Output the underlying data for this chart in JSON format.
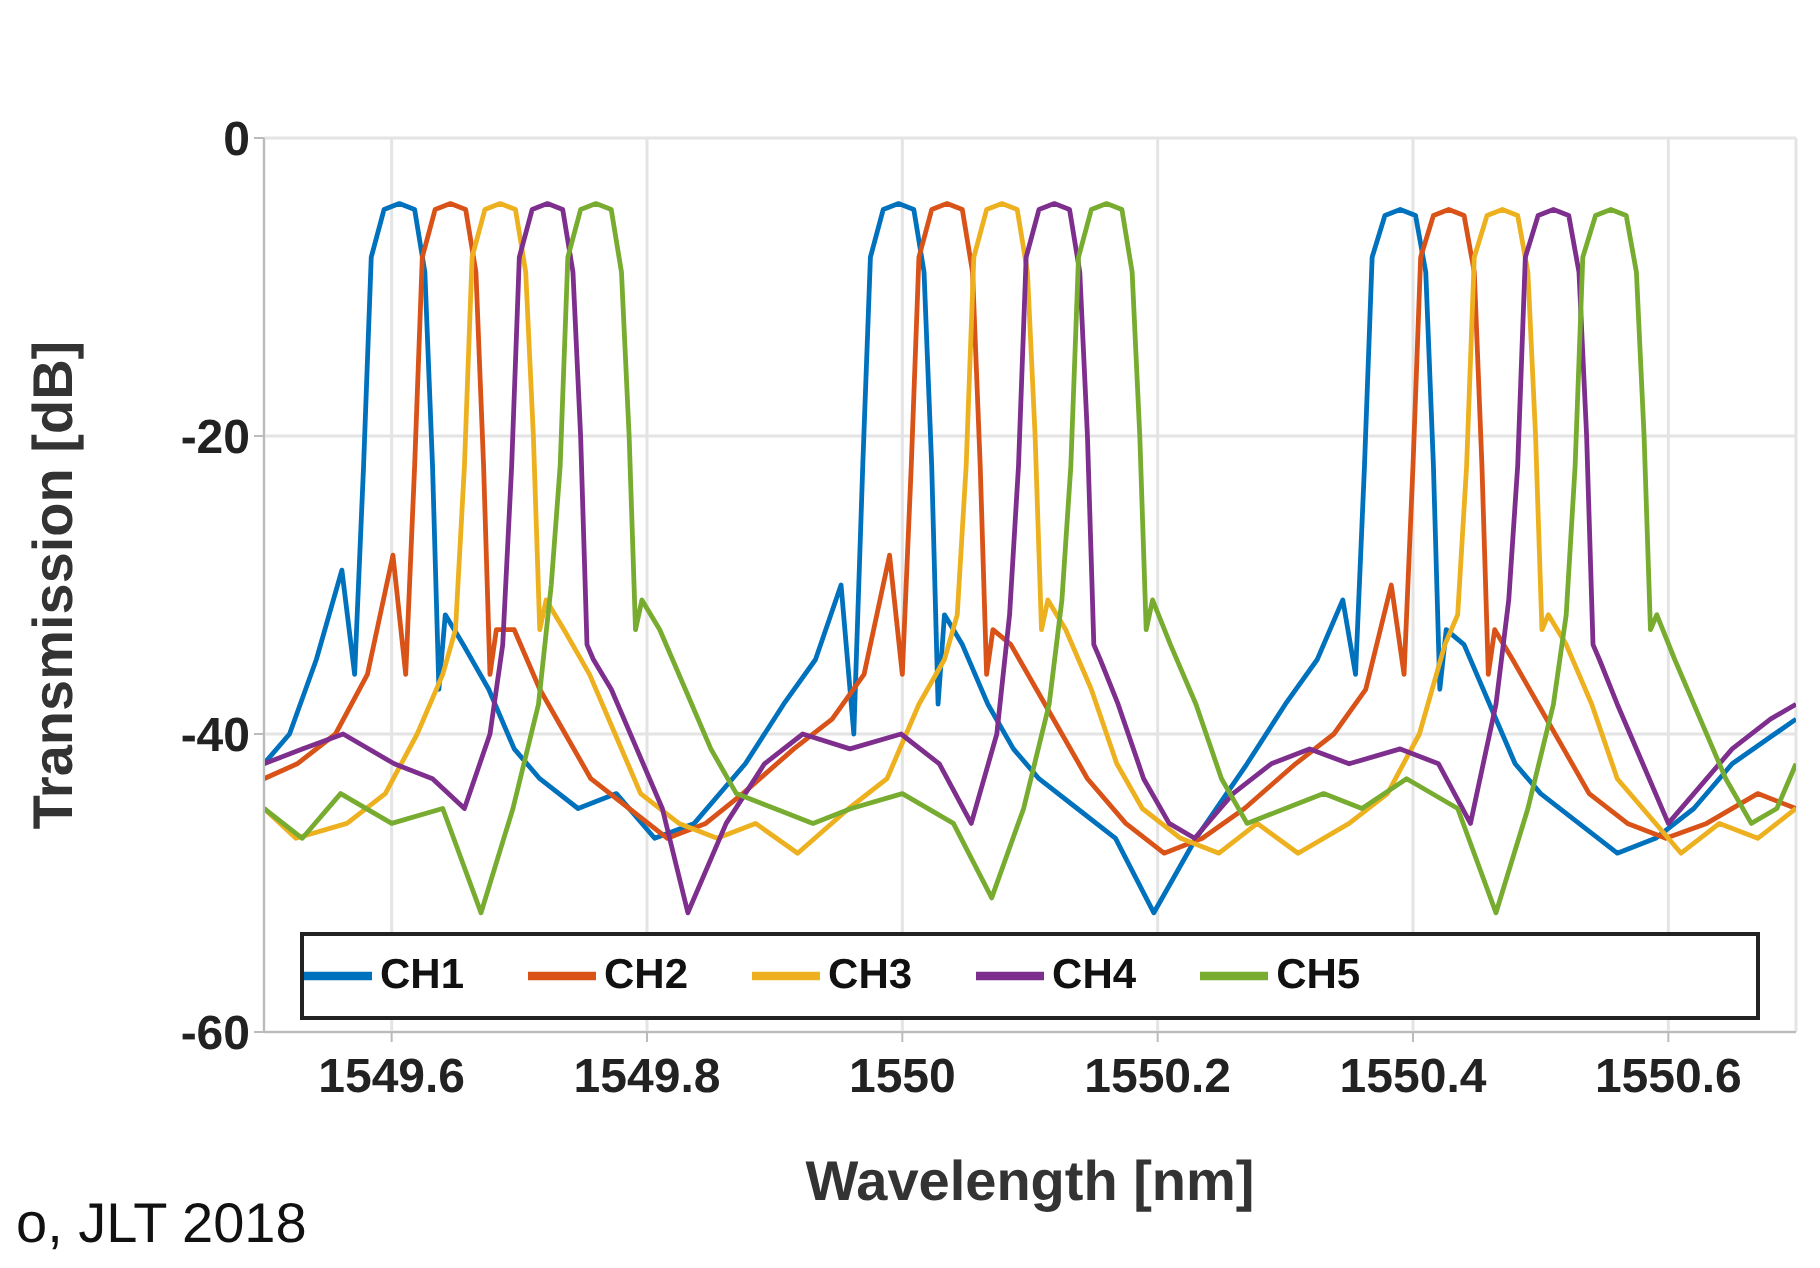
{
  "chart_data": {
    "type": "line",
    "xlabel": "Wavelength [nm]",
    "ylabel": "Transmission [dB]",
    "xlim": [
      1549.5,
      1550.7
    ],
    "xticks": [
      1549.6,
      1549.8,
      1550,
      1550.2,
      1550.4,
      1550.6
    ],
    "ylim": [
      -60,
      0
    ],
    "yticks": [
      -60,
      -40,
      -20,
      0
    ],
    "grid": true,
    "legend": "bottom",
    "marker": "none",
    "line_style": "solid",
    "annotations": [
      "o, JLT 2018"
    ],
    "series": [
      {
        "name": "CH1",
        "color": "#0072bd",
        "x": [
          1549.5,
          1549.52,
          1549.541,
          1549.561,
          1549.571,
          1549.578,
          1549.584,
          1549.594,
          1549.606,
          1549.618,
          1549.626,
          1549.632,
          1549.637,
          1549.642,
          1549.656,
          1549.676,
          1549.696,
          1549.716,
          1549.746,
          1549.776,
          1549.806,
          1549.837,
          1549.877,
          1549.907,
          1549.932,
          1549.952,
          1549.962,
          1549.969,
          1549.975,
          1549.985,
          1549.997,
          1550.009,
          1550.017,
          1550.023,
          1550.028,
          1550.033,
          1550.047,
          1550.067,
          1550.087,
          1550.107,
          1550.137,
          1550.167,
          1550.197,
          1550.23,
          1550.27,
          1550.3,
          1550.325,
          1550.345,
          1550.355,
          1550.362,
          1550.368,
          1550.378,
          1550.39,
          1550.402,
          1550.41,
          1550.416,
          1550.421,
          1550.426,
          1550.44,
          1550.46,
          1550.48,
          1550.5,
          1550.53,
          1550.56,
          1550.59,
          1550.62,
          1550.65,
          1550.7
        ],
        "values": [
          -42,
          -40,
          -35,
          -29,
          -36,
          -22,
          -8,
          -4.8,
          -4.4,
          -4.8,
          -9,
          -22,
          -37,
          -32,
          -34,
          -37,
          -41,
          -43,
          -45,
          -44,
          -47,
          -46,
          -42,
          -38,
          -35,
          -30,
          -40,
          -22,
          -8,
          -4.8,
          -4.4,
          -4.8,
          -9,
          -22,
          -38,
          -32,
          -34,
          -38,
          -41,
          -43,
          -45,
          -47,
          -52,
          -47,
          -42,
          -38,
          -35,
          -31,
          -36,
          -22,
          -8,
          -5.2,
          -4.8,
          -5.2,
          -9,
          -22,
          -37,
          -33,
          -34,
          -38,
          -42,
          -44,
          -46,
          -48,
          -47,
          -45,
          -42,
          -39
        ]
      },
      {
        "name": "CH2",
        "color": "#d95319",
        "x": [
          1549.5,
          1549.526,
          1549.556,
          1549.581,
          1549.601,
          1549.611,
          1549.618,
          1549.624,
          1549.634,
          1549.646,
          1549.658,
          1549.666,
          1549.672,
          1549.677,
          1549.682,
          1549.696,
          1549.716,
          1549.736,
          1549.756,
          1549.786,
          1549.816,
          1549.846,
          1549.875,
          1549.915,
          1549.945,
          1549.97,
          1549.99,
          1550.0,
          1550.007,
          1550.013,
          1550.023,
          1550.035,
          1550.047,
          1550.055,
          1550.061,
          1550.066,
          1550.071,
          1550.085,
          1550.105,
          1550.125,
          1550.145,
          1550.175,
          1550.205,
          1550.235,
          1550.268,
          1550.308,
          1550.338,
          1550.363,
          1550.383,
          1550.393,
          1550.4,
          1550.406,
          1550.416,
          1550.428,
          1550.44,
          1550.448,
          1550.454,
          1550.459,
          1550.464,
          1550.478,
          1550.498,
          1550.518,
          1550.538,
          1550.568,
          1550.598,
          1550.63,
          1550.67,
          1550.7
        ],
        "values": [
          -43,
          -42,
          -40,
          -36,
          -28,
          -36,
          -22,
          -8,
          -4.8,
          -4.4,
          -4.8,
          -9,
          -22,
          -36,
          -33,
          -33,
          -37,
          -40,
          -43,
          -45,
          -47,
          -46,
          -44,
          -41,
          -39,
          -36,
          -28,
          -36,
          -22,
          -8,
          -4.8,
          -4.4,
          -4.8,
          -9,
          -22,
          -36,
          -33,
          -34,
          -37,
          -40,
          -43,
          -46,
          -48,
          -47,
          -45,
          -42,
          -40,
          -37,
          -30,
          -36,
          -22,
          -8,
          -5.2,
          -4.8,
          -5.2,
          -9,
          -22,
          -36,
          -33,
          -35,
          -38,
          -41,
          -44,
          -46,
          -47,
          -46,
          -44,
          -45
        ]
      },
      {
        "name": "CH3",
        "color": "#edb120",
        "x": [
          1549.5,
          1549.525,
          1549.565,
          1549.595,
          1549.62,
          1549.64,
          1549.65,
          1549.657,
          1549.663,
          1549.673,
          1549.685,
          1549.697,
          1549.705,
          1549.711,
          1549.716,
          1549.721,
          1549.735,
          1549.755,
          1549.775,
          1549.795,
          1549.825,
          1549.855,
          1549.885,
          1549.918,
          1549.958,
          1549.988,
          1550.013,
          1550.033,
          1550.043,
          1550.05,
          1550.056,
          1550.066,
          1550.078,
          1550.09,
          1550.098,
          1550.104,
          1550.109,
          1550.114,
          1550.128,
          1550.148,
          1550.168,
          1550.188,
          1550.218,
          1550.248,
          1550.278,
          1550.31,
          1550.35,
          1550.38,
          1550.405,
          1550.425,
          1550.435,
          1550.442,
          1550.448,
          1550.458,
          1550.47,
          1550.482,
          1550.49,
          1550.496,
          1550.501,
          1550.506,
          1550.52,
          1550.54,
          1550.56,
          1550.58,
          1550.61,
          1550.64,
          1550.67,
          1550.7
        ],
        "values": [
          -45,
          -47,
          -46,
          -44,
          -40,
          -36,
          -33,
          -22,
          -8,
          -4.8,
          -4.4,
          -4.8,
          -9,
          -20,
          -33,
          -31,
          -33,
          -36,
          -40,
          -44,
          -46,
          -47,
          -46,
          -48,
          -45,
          -43,
          -38,
          -35,
          -32,
          -22,
          -8,
          -4.8,
          -4.4,
          -4.8,
          -9,
          -20,
          -33,
          -31,
          -33,
          -37,
          -42,
          -45,
          -47,
          -48,
          -46,
          -48,
          -46,
          -44,
          -40,
          -34,
          -32,
          -22,
          -8,
          -5.2,
          -4.8,
          -5.2,
          -9,
          -20,
          -33,
          -32,
          -34,
          -38,
          -43,
          -45,
          -48,
          -46,
          -47,
          -45
        ]
      },
      {
        "name": "CH4",
        "color": "#7e2f8e",
        "x": [
          1549.5,
          1549.53,
          1549.562,
          1549.602,
          1549.632,
          1549.657,
          1549.677,
          1549.687,
          1549.694,
          1549.7,
          1549.71,
          1549.722,
          1549.734,
          1549.742,
          1549.748,
          1549.753,
          1549.758,
          1549.772,
          1549.792,
          1549.812,
          1549.832,
          1549.862,
          1549.892,
          1549.922,
          1549.959,
          1549.999,
          1550.029,
          1550.054,
          1550.074,
          1550.084,
          1550.091,
          1550.097,
          1550.107,
          1550.119,
          1550.131,
          1550.139,
          1550.145,
          1550.15,
          1550.155,
          1550.169,
          1550.189,
          1550.209,
          1550.229,
          1550.259,
          1550.289,
          1550.319,
          1550.35,
          1550.39,
          1550.42,
          1550.445,
          1550.465,
          1550.475,
          1550.482,
          1550.488,
          1550.498,
          1550.51,
          1550.522,
          1550.53,
          1550.536,
          1550.541,
          1550.546,
          1550.56,
          1550.58,
          1550.6,
          1550.62,
          1550.65,
          1550.68,
          1550.7
        ],
        "values": [
          -42,
          -41,
          -40,
          -42,
          -43,
          -45,
          -40,
          -34,
          -22,
          -8,
          -4.8,
          -4.4,
          -4.8,
          -9,
          -20,
          -34,
          -35,
          -37,
          -41,
          -45,
          -52,
          -46,
          -42,
          -40,
          -41,
          -40,
          -42,
          -46,
          -40,
          -32,
          -22,
          -8,
          -4.8,
          -4.4,
          -4.8,
          -9,
          -20,
          -34,
          -35,
          -38,
          -43,
          -46,
          -47,
          -44,
          -42,
          -41,
          -42,
          -41,
          -42,
          -46,
          -38,
          -31,
          -22,
          -8,
          -5.2,
          -4.8,
          -5.2,
          -9,
          -20,
          -34,
          -35,
          -38,
          -42,
          -46,
          -44,
          -41,
          -39,
          -38
        ]
      },
      {
        "name": "CH5",
        "color": "#77ac30",
        "x": [
          1549.5,
          1549.53,
          1549.56,
          1549.6,
          1549.64,
          1549.67,
          1549.695,
          1549.715,
          1549.725,
          1549.732,
          1549.738,
          1549.748,
          1549.76,
          1549.772,
          1549.78,
          1549.786,
          1549.791,
          1549.796,
          1549.81,
          1549.83,
          1549.85,
          1549.87,
          1549.9,
          1549.93,
          1549.96,
          1550.0,
          1550.04,
          1550.07,
          1550.095,
          1550.115,
          1550.125,
          1550.132,
          1550.138,
          1550.148,
          1550.16,
          1550.172,
          1550.18,
          1550.186,
          1550.191,
          1550.196,
          1550.21,
          1550.23,
          1550.25,
          1550.27,
          1550.3,
          1550.33,
          1550.36,
          1550.395,
          1550.435,
          1550.465,
          1550.49,
          1550.51,
          1550.52,
          1550.527,
          1550.533,
          1550.543,
          1550.555,
          1550.567,
          1550.575,
          1550.581,
          1550.586,
          1550.591,
          1550.605,
          1550.625,
          1550.645,
          1550.665,
          1550.685,
          1550.7
        ],
        "values": [
          -45,
          -47,
          -44,
          -46,
          -45,
          -52,
          -45,
          -38,
          -30,
          -22,
          -8,
          -4.8,
          -4.4,
          -4.8,
          -9,
          -20,
          -33,
          -31,
          -33,
          -37,
          -41,
          -44,
          -45,
          -46,
          -45,
          -44,
          -46,
          -51,
          -45,
          -38,
          -31,
          -22,
          -8,
          -4.8,
          -4.4,
          -4.8,
          -9,
          -20,
          -33,
          -31,
          -34,
          -38,
          -43,
          -46,
          -45,
          -44,
          -45,
          -43,
          -45,
          -52,
          -45,
          -38,
          -32,
          -22,
          -8,
          -5.2,
          -4.8,
          -5.2,
          -9,
          -20,
          -33,
          -32,
          -35,
          -39,
          -43,
          -46,
          -45,
          -42
        ]
      }
    ]
  }
}
